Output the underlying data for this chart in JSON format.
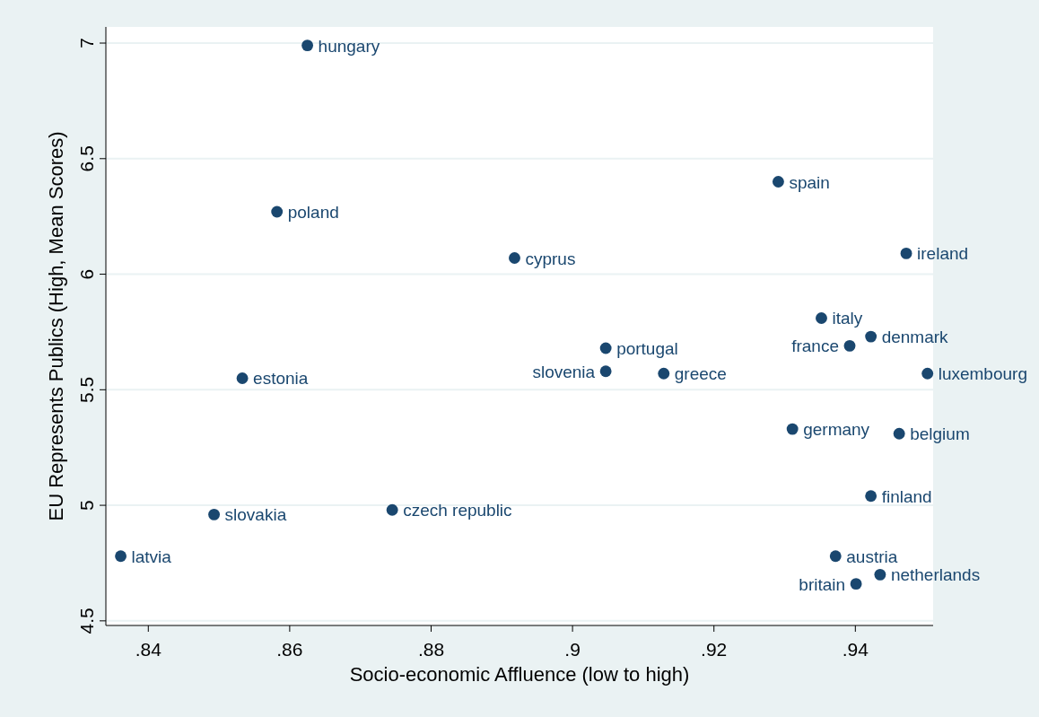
{
  "chart_data": {
    "type": "scatter",
    "xlabel": "Socio-economic Affluence (low to high)",
    "ylabel": "EU Represents Publics (High, Mean Scores)",
    "xlim": [
      0.834,
      0.951
    ],
    "ylim": [
      4.48,
      7.07
    ],
    "xticks": [
      {
        "value": 0.84,
        "label": ".84"
      },
      {
        "value": 0.86,
        "label": ".86"
      },
      {
        "value": 0.88,
        "label": ".88"
      },
      {
        "value": 0.9,
        "label": ".9"
      },
      {
        "value": 0.92,
        "label": ".92"
      },
      {
        "value": 0.94,
        "label": ".94"
      }
    ],
    "yticks": [
      {
        "value": 4.5,
        "label": "4.5"
      },
      5,
      {
        "value": 5.5,
        "label": "5.5"
      },
      6,
      {
        "value": 6.5,
        "label": "6.5"
      },
      7
    ],
    "grid": "y",
    "marker": "circle",
    "series": [
      {
        "color": "#1a476f",
        "x": [
          0.8625,
          0.8582,
          0.8918,
          0.9291,
          0.9472,
          0.9352,
          0.9422,
          0.9392,
          0.9047,
          0.9047,
          0.9129,
          0.9502,
          0.8533,
          0.9311,
          0.9462,
          0.9422,
          0.8745,
          0.8493,
          0.8361,
          0.9372,
          0.9435,
          0.9401
        ],
        "values": [
          6.99,
          6.27,
          6.07,
          6.4,
          6.09,
          5.81,
          5.73,
          5.69,
          5.68,
          5.58,
          5.57,
          5.57,
          5.55,
          5.33,
          5.31,
          5.04,
          4.98,
          4.96,
          4.78,
          4.78,
          4.7,
          4.66
        ]
      }
    ],
    "annotations": [
      {
        "text": "hungary",
        "x": 0.8625,
        "y": 6.99
      },
      {
        "text": "poland",
        "x": 0.8582,
        "y": 6.27
      },
      {
        "text": "cyprus",
        "x": 0.8918,
        "y": 6.07
      },
      {
        "text": "spain",
        "x": 0.9291,
        "y": 6.4
      },
      {
        "text": "ireland",
        "x": 0.9472,
        "y": 6.09
      },
      {
        "text": "italy",
        "x": 0.9352,
        "y": 5.81
      },
      {
        "text": "denmark",
        "x": 0.9422,
        "y": 5.73
      },
      {
        "text": "france",
        "x": 0.9392,
        "y": 5.69
      },
      {
        "text": "portugal",
        "x": 0.9047,
        "y": 5.68
      },
      {
        "text": "slovenia",
        "x": 0.9047,
        "y": 5.58
      },
      {
        "text": "greece",
        "x": 0.9129,
        "y": 5.57
      },
      {
        "text": "luxembourg",
        "x": 0.9502,
        "y": 5.57
      },
      {
        "text": "estonia",
        "x": 0.8533,
        "y": 5.55
      },
      {
        "text": "germany",
        "x": 0.9311,
        "y": 5.33
      },
      {
        "text": "belgium",
        "x": 0.9462,
        "y": 5.31
      },
      {
        "text": "finland",
        "x": 0.9422,
        "y": 5.04
      },
      {
        "text": "czech republic",
        "x": 0.8745,
        "y": 4.98
      },
      {
        "text": "slovakia",
        "x": 0.8493,
        "y": 4.96
      },
      {
        "text": "latvia",
        "x": 0.8361,
        "y": 4.78
      },
      {
        "text": "austria",
        "x": 0.9372,
        "y": 4.78
      },
      {
        "text": "netherlands",
        "x": 0.9435,
        "y": 4.7
      },
      {
        "text": "britain",
        "x": 0.9401,
        "y": 4.66
      }
    ]
  }
}
